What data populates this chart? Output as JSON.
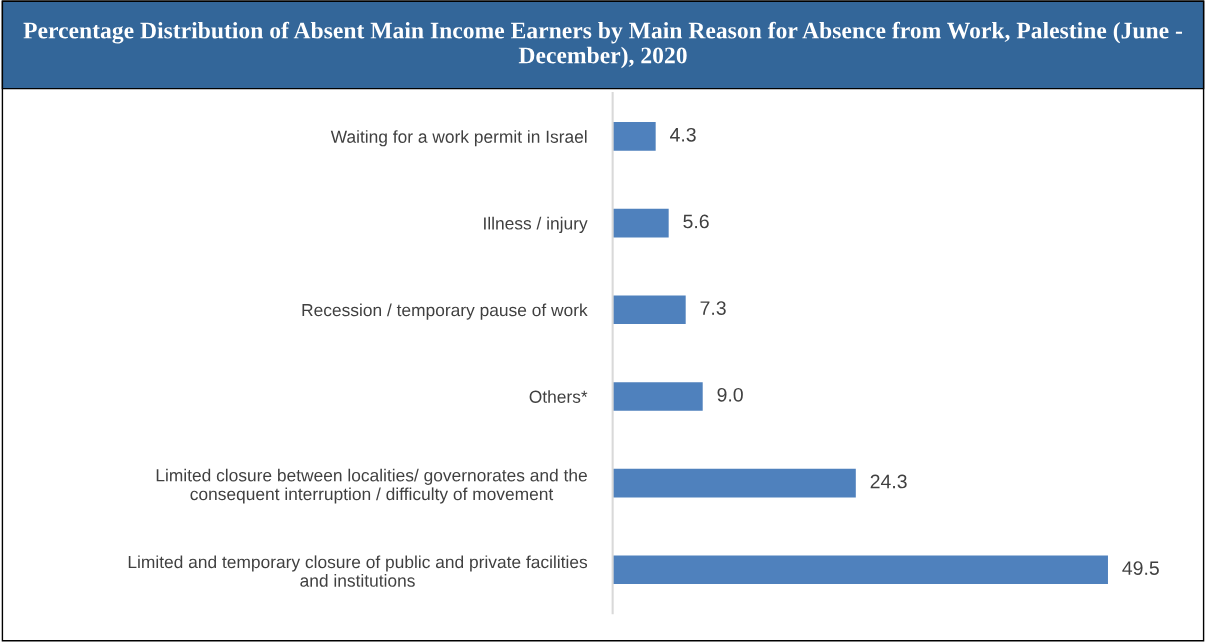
{
  "chart_data": {
    "type": "bar",
    "orientation": "horizontal",
    "title": "Percentage Distribution of Absent Main Income Earners by Main Reason for Absence from Work, Palestine (June - December), 2020",
    "categories": [
      "Waiting for a work permit in Israel",
      "Illness / injury",
      "Recession / temporary pause of work",
      "Others*",
      "Limited closure between localities/ governorates and the\nconsequent interruption / difficulty of movement",
      "Limited and temporary closure of public and private facilities\nand institutions"
    ],
    "values": [
      4.3,
      5.6,
      7.3,
      9.0,
      24.3,
      49.5
    ],
    "value_labels": [
      "4.3",
      "5.6",
      "7.3",
      "9.0",
      "24.3",
      "49.5"
    ],
    "color": "#4f81bd",
    "grid": false,
    "legend": false
  }
}
